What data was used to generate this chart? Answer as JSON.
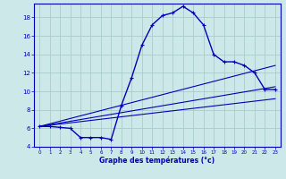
{
  "xlabel": "Graphe des températures (°c)",
  "xlim": [
    -0.5,
    23.5
  ],
  "ylim": [
    4,
    19.5
  ],
  "yticks": [
    4,
    6,
    8,
    10,
    12,
    14,
    16,
    18
  ],
  "xticks": [
    0,
    1,
    2,
    3,
    4,
    5,
    6,
    7,
    8,
    9,
    10,
    11,
    12,
    13,
    14,
    15,
    16,
    17,
    18,
    19,
    20,
    21,
    22,
    23
  ],
  "background_color": "#cce8e8",
  "line_color": "#0000bb",
  "grid_color": "#aacccc",
  "line1_x": [
    0,
    1,
    2,
    3,
    4,
    5,
    6,
    7,
    8,
    9,
    10,
    11,
    12,
    13,
    14,
    15,
    16,
    17,
    18,
    19,
    20,
    21,
    22,
    23
  ],
  "line1_y": [
    6.2,
    6.2,
    6.1,
    6.0,
    5.0,
    5.0,
    5.0,
    4.8,
    8.5,
    11.5,
    15.0,
    17.2,
    18.2,
    18.5,
    19.2,
    18.5,
    17.2,
    14.0,
    13.2,
    13.2,
    12.8,
    12.0,
    10.2,
    10.2
  ],
  "line2_x": [
    0,
    23
  ],
  "line2_y": [
    6.2,
    12.8
  ],
  "line3_x": [
    0,
    23
  ],
  "line3_y": [
    6.2,
    10.5
  ],
  "line4_x": [
    0,
    23
  ],
  "line4_y": [
    6.2,
    9.2
  ]
}
